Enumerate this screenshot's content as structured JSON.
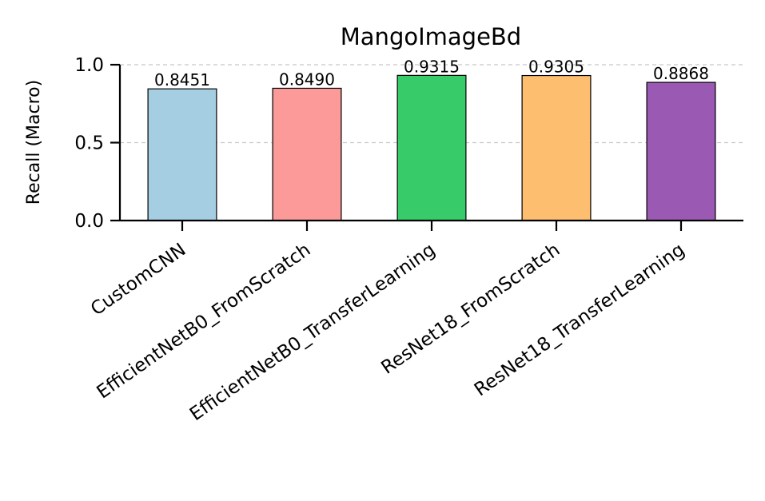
{
  "chart_data": {
    "type": "bar",
    "title": "MangoImageBd",
    "xlabel": "",
    "ylabel": "Recall (Macro)",
    "ylim": [
      0,
      1.0
    ],
    "yticks": [
      "0.0",
      "0.5",
      "1.0"
    ],
    "grid": "horizontal dashed",
    "categories": [
      "CustomCNN",
      "EfficientNetB0_FromScratch",
      "EfficientNetB0_TransferLearning",
      "ResNet18_FromScratch",
      "ResNet18_TransferLearning"
    ],
    "values": [
      0.8451,
      0.849,
      0.9315,
      0.9305,
      0.8868
    ],
    "value_labels": [
      "0.8451",
      "0.8490",
      "0.9315",
      "0.9305",
      "0.8868"
    ],
    "colors": [
      "#a6cee3",
      "#fb9a99",
      "#37cc69",
      "#fdbf6f",
      "#9a59b2"
    ]
  }
}
